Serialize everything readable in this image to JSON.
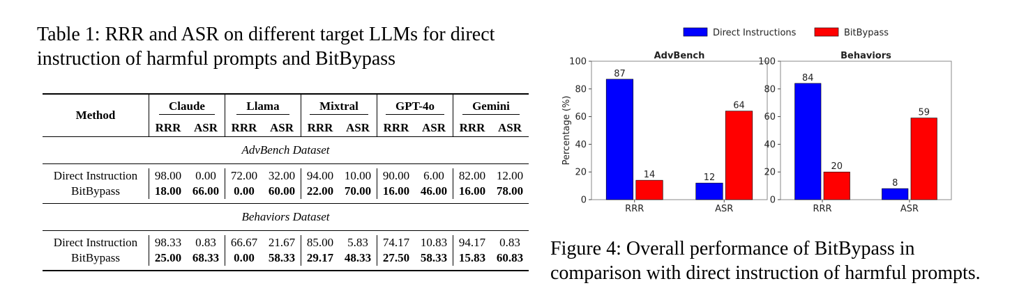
{
  "table": {
    "caption": "Table 1: RRR and ASR on different target LLMs for direct instruction of harmful prompts and BitBypass",
    "method_header": "Method",
    "models": [
      "Claude",
      "Llama",
      "Mixtral",
      "GPT-4o",
      "Gemini"
    ],
    "metric_headers": [
      "RRR",
      "ASR"
    ],
    "datasets": [
      {
        "name": "AdvBench Dataset",
        "rows": [
          {
            "method": "Direct Instruction",
            "bold": false,
            "values": [
              "98.00",
              "0.00",
              "72.00",
              "32.00",
              "94.00",
              "10.00",
              "90.00",
              "6.00",
              "82.00",
              "12.00"
            ]
          },
          {
            "method": "BitBypass",
            "bold": true,
            "values": [
              "18.00",
              "66.00",
              "0.00",
              "60.00",
              "22.00",
              "70.00",
              "16.00",
              "46.00",
              "16.00",
              "78.00"
            ]
          }
        ]
      },
      {
        "name": "Behaviors Dataset",
        "rows": [
          {
            "method": "Direct Instruction",
            "bold": false,
            "values": [
              "98.33",
              "0.83",
              "66.67",
              "21.67",
              "85.00",
              "5.83",
              "74.17",
              "10.83",
              "94.17",
              "0.83"
            ]
          },
          {
            "method": "BitBypass",
            "bold": true,
            "values": [
              "25.00",
              "68.33",
              "0.00",
              "58.33",
              "29.17",
              "48.33",
              "27.50",
              "58.33",
              "15.83",
              "60.83"
            ]
          }
        ]
      }
    ]
  },
  "figure": {
    "caption": "Figure 4: Overall performance of BitBypass in comparison with direct instruction of harmful prompts."
  },
  "chart_data": {
    "type": "bar",
    "ylabel": "Percentage (%)",
    "ylim": [
      0,
      100
    ],
    "yticks": [
      0,
      20,
      40,
      60,
      80,
      100
    ],
    "categories": [
      "RRR",
      "ASR"
    ],
    "legend": {
      "placement": "top"
    },
    "grid": false,
    "series_colors": [
      "#0000ff",
      "#ff0000"
    ],
    "series_names": [
      "Direct Instructions",
      "BitBypass"
    ],
    "panels": [
      {
        "title": "AdvBench",
        "series": [
          {
            "name": "Direct Instructions",
            "values": [
              87,
              12
            ]
          },
          {
            "name": "BitBypass",
            "values": [
              14,
              64
            ]
          }
        ]
      },
      {
        "title": "Behaviors",
        "series": [
          {
            "name": "Direct Instructions",
            "values": [
              84,
              8
            ]
          },
          {
            "name": "BitBypass",
            "values": [
              20,
              59
            ]
          }
        ]
      }
    ]
  }
}
